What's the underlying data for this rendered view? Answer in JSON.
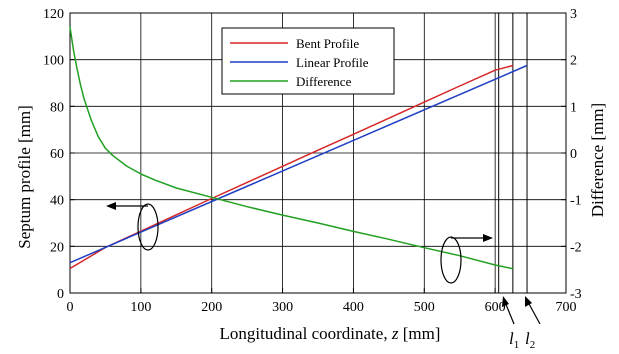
{
  "chart_data": {
    "type": "line",
    "xlabel_prefix": "Longitudinal coordinate, ",
    "xlabel_var": "z",
    "xlabel_unit": " [mm]",
    "ylabel": "Septum profile [mm]",
    "y2label": "Difference [mm]",
    "xlim": [
      0,
      700
    ],
    "ylim": [
      0,
      120
    ],
    "y2lim": [
      -3,
      3
    ],
    "xticks": [
      "0",
      "100",
      "200",
      "300",
      "400",
      "500",
      "600",
      "700"
    ],
    "yticks": [
      "0",
      "20",
      "40",
      "60",
      "80",
      "100",
      "120"
    ],
    "y2ticks": [
      "-3",
      "-2",
      "-1",
      "0",
      "1",
      "2",
      "3"
    ],
    "grid": true,
    "legend_position": "top-center",
    "series": [
      {
        "name": "Bent Profile",
        "color": "#d62728",
        "axis": "left",
        "x": [
          0,
          50,
          100,
          150,
          200,
          250,
          300,
          350,
          400,
          450,
          500,
          550,
          600,
          625
        ],
        "y": [
          10.5,
          19.5,
          26.5,
          33.5,
          40.5,
          47.4,
          54.3,
          61.2,
          68.0,
          74.9,
          81.8,
          88.7,
          95.5,
          97.5
        ]
      },
      {
        "name": "Linear Profile",
        "color": "#1f3fc4",
        "axis": "left",
        "x": [
          0,
          645
        ],
        "y": [
          13.0,
          97.5
        ]
      },
      {
        "name": "Difference",
        "color": "#22a022",
        "axis": "right",
        "x": [
          0,
          5,
          10,
          15,
          20,
          30,
          40,
          50,
          60,
          80,
          100,
          120,
          150,
          200,
          250,
          300,
          350,
          400,
          450,
          500,
          550,
          600,
          625
        ],
        "y": [
          2.7,
          2.2,
          1.8,
          1.45,
          1.15,
          0.7,
          0.35,
          0.1,
          -0.05,
          -0.28,
          -0.45,
          -0.58,
          -0.75,
          -0.95,
          -1.15,
          -1.33,
          -1.5,
          -1.68,
          -1.85,
          -2.03,
          -2.2,
          -2.4,
          -2.48
        ]
      }
    ],
    "vlines": [
      {
        "label": "l",
        "sub": "1",
        "x": 625
      },
      {
        "label": "l",
        "sub": "2",
        "x": 645
      }
    ],
    "extra_vline_x": 605
  }
}
